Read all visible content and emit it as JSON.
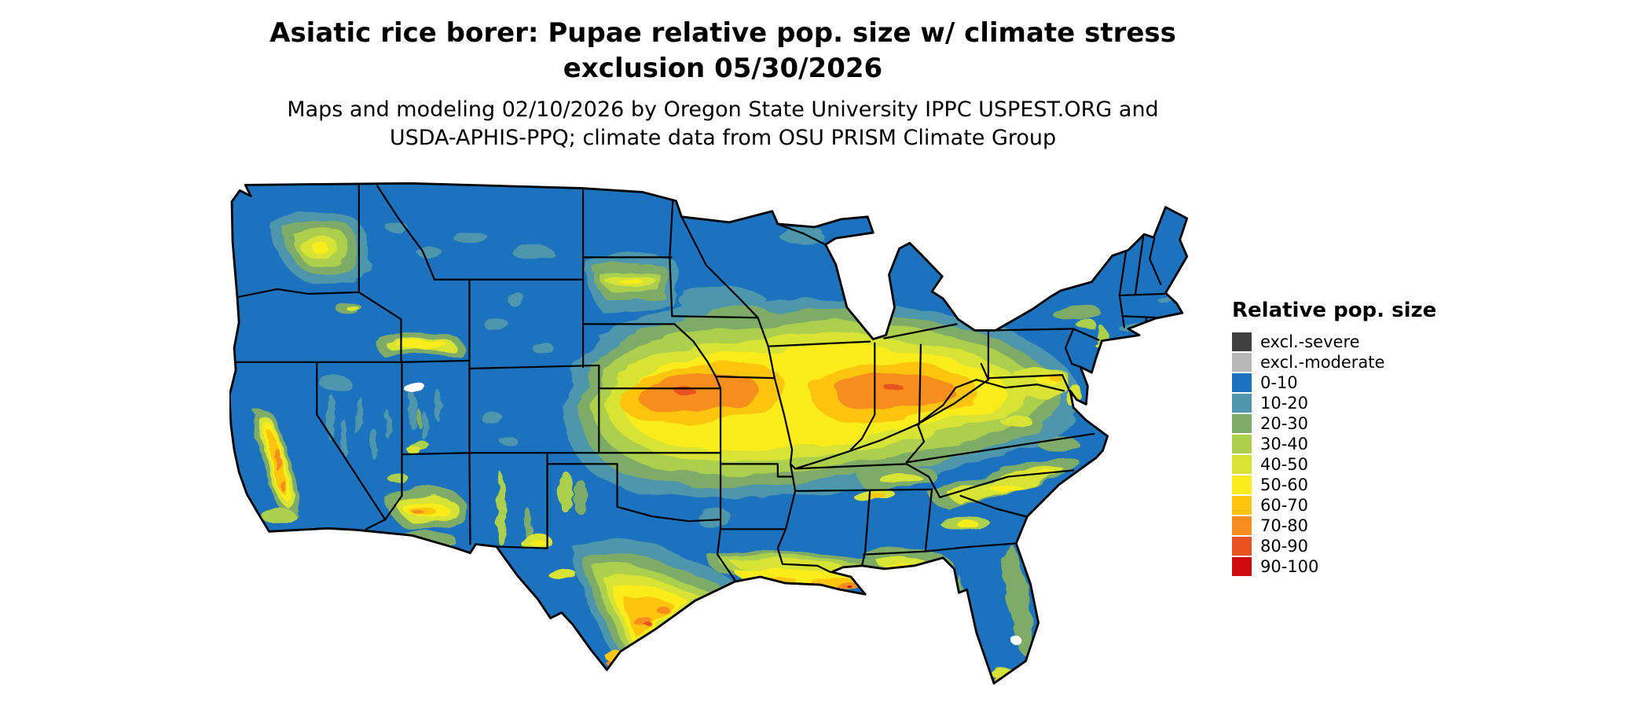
{
  "header": {
    "title_line1": "Asiatic rice borer: Pupae relative pop. size w/ climate stress",
    "title_line2": "exclusion 05/30/2026",
    "subtitle_line1": "Maps and modeling 02/10/2026 by Oregon State University IPPC USPEST.ORG and",
    "subtitle_line2": "USDA-APHIS-PPQ; climate data from OSU PRISM Climate Group"
  },
  "legend": {
    "title": "Relative pop. size",
    "items": [
      {
        "label": "excl.-severe",
        "color": "#3f3f3f"
      },
      {
        "label": "excl.-moderate",
        "color": "#b8b8b8"
      },
      {
        "label": "0-10",
        "color": "#1d72bd"
      },
      {
        "label": "10-20",
        "color": "#4e96ab"
      },
      {
        "label": "20-30",
        "color": "#7fab68"
      },
      {
        "label": "30-40",
        "color": "#accf4e"
      },
      {
        "label": "40-50",
        "color": "#d7e335"
      },
      {
        "label": "50-60",
        "color": "#fbec1f"
      },
      {
        "label": "60-70",
        "color": "#fdc50f"
      },
      {
        "label": "70-80",
        "color": "#f78d1f"
      },
      {
        "label": "80-90",
        "color": "#e85120"
      },
      {
        "label": "90-100",
        "color": "#ce0a0e"
      }
    ]
  },
  "map": {
    "region": "Conterminous United States",
    "base_class": "0-10",
    "border_color": "#000000",
    "water_color": "#ffffff",
    "visual_summary": "Raster map mostly blue (0-10); yellow-to-orange band across the central Plains and Corn Belt (Nebraska, Kansas, Iowa, Missouri, Illinois, Indiana, Ohio into Pennsylvania); yellow-orange band along the Texas-Louisiana-Gulf coast; yellow patches in California Central Valley, southern Arizona, Snake River Plain, Columbia Basin, mid-Atlantic piedmont and Carolinas."
  }
}
